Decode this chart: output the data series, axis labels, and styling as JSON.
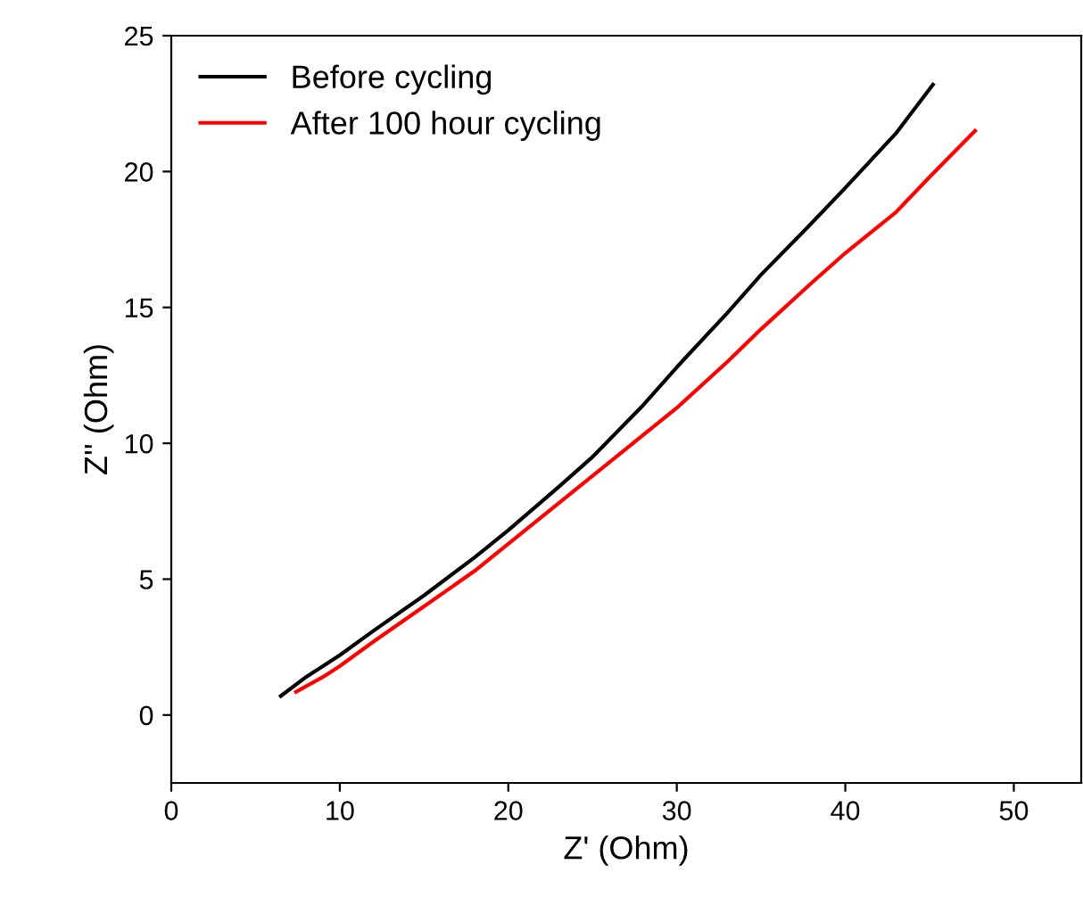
{
  "chart_data": {
    "type": "line",
    "xlabel": "Z' (Ohm)",
    "ylabel": "Z'' (Ohm)",
    "xlim": [
      0,
      54
    ],
    "ylim": [
      -2.5,
      25
    ],
    "xticks": [
      0,
      10,
      20,
      30,
      40,
      50
    ],
    "yticks": [
      0,
      5,
      10,
      15,
      20,
      25
    ],
    "grid": false,
    "legend": "top left",
    "marker": "none",
    "line_style": "solid",
    "series": [
      {
        "name": "Before cycling",
        "color": "#000000",
        "x": [
          6.5,
          8,
          10,
          12,
          15,
          18,
          20,
          23,
          25,
          28,
          30,
          33,
          35,
          38,
          40,
          43,
          45.2
        ],
        "values": [
          0.7,
          1.4,
          2.2,
          3.1,
          4.4,
          5.8,
          6.8,
          8.4,
          9.5,
          11.4,
          12.8,
          14.8,
          16.2,
          18.1,
          19.4,
          21.4,
          23.2
        ]
      },
      {
        "name": "After 100 hour cycling",
        "color": "#ff0000",
        "x": [
          7.4,
          9,
          10,
          12,
          15,
          18,
          20,
          23,
          25,
          28,
          30,
          33,
          35,
          38,
          40,
          43,
          45,
          47.7
        ],
        "values": [
          0.85,
          1.4,
          1.8,
          2.7,
          4.0,
          5.3,
          6.3,
          7.8,
          8.8,
          10.3,
          11.3,
          13.0,
          14.2,
          15.9,
          17.0,
          18.5,
          19.8,
          21.5
        ]
      }
    ]
  }
}
